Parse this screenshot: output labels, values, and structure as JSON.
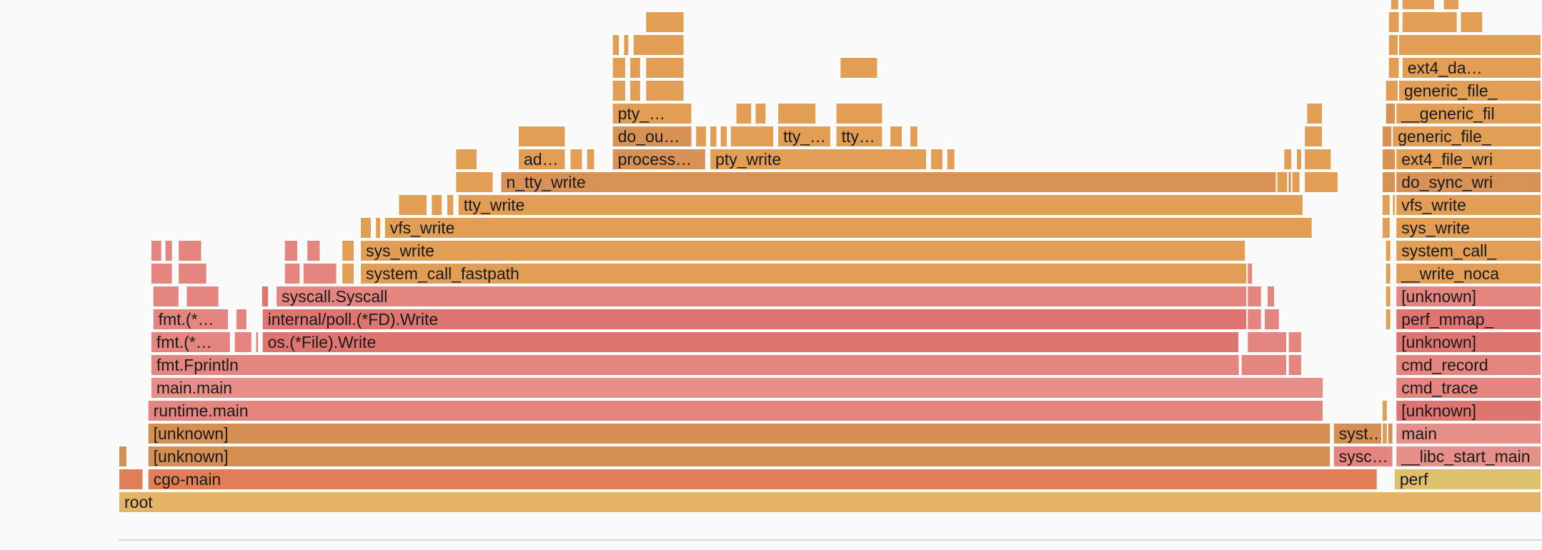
{
  "chart_data": {
    "type": "flamegraph",
    "title": "",
    "colors": {
      "root": "#e3b368",
      "go_dark": "#e07f56",
      "go_mid": "#d68f52",
      "red_light": "#e79089",
      "red": "#e58580",
      "red_dark": "#df7571",
      "kernel": "#e39e55",
      "kernel_dark": "#d89255",
      "perf": "#dcc06c"
    },
    "frames": [
      {
        "name": "root",
        "depth": 0,
        "start": 0,
        "width": 1,
        "color": "root"
      },
      {
        "name": "cgo-main",
        "depth": 1,
        "start": 0.0204,
        "width": 0.8645,
        "color": "go_dark"
      },
      {
        "name": "",
        "depth": 1,
        "start": 0,
        "width": 0.0178,
        "color": "go_dark"
      },
      {
        "name": "perf",
        "depth": 1,
        "start": 0.896,
        "width": 0.104,
        "color": "perf"
      },
      {
        "name": "",
        "depth": 2,
        "start": 0,
        "width": 0.0065,
        "color": "go_mid"
      },
      {
        "name": "[unknown]",
        "depth": 2,
        "start": 0.0204,
        "width": 0.8316,
        "color": "go_mid"
      },
      {
        "name": "sysc…",
        "depth": 2,
        "start": 0.8533,
        "width": 0.0426,
        "color": "red"
      },
      {
        "name": "__libc_start_main",
        "depth": 2,
        "start": 0.8972,
        "width": 0.1028,
        "color": "red_light"
      },
      {
        "name": "[unknown]",
        "depth": 3,
        "start": 0.0204,
        "width": 0.8316,
        "color": "go_mid"
      },
      {
        "name": "syst…",
        "depth": 3,
        "start": 0.8533,
        "width": 0.0426,
        "color": "go_mid"
      },
      {
        "name": "",
        "depth": 3,
        "start": 0.8875,
        "width": 0.0045,
        "color": "kernel"
      },
      {
        "name": "main",
        "depth": 3,
        "start": 0.8972,
        "width": 0.1028,
        "color": "red_light"
      },
      {
        "name": "runtime.main",
        "depth": 4,
        "start": 0.0204,
        "width": 0.8265,
        "color": "red"
      },
      {
        "name": "",
        "depth": 4,
        "start": 0.8875,
        "width": 0.0045,
        "color": "kernel"
      },
      {
        "name": "[unknown]",
        "depth": 4,
        "start": 0.8972,
        "width": 0.1028,
        "color": "red_dark"
      },
      {
        "name": "main.main",
        "depth": 5,
        "start": 0.0225,
        "width": 0.8245,
        "color": "red_light"
      },
      {
        "name": "cmd_trace",
        "depth": 5,
        "start": 0.8972,
        "width": 0.1028,
        "color": "red"
      },
      {
        "name": "fmt.Fprintln",
        "depth": 6,
        "start": 0.0225,
        "width": 0.7655,
        "color": "red"
      },
      {
        "name": "",
        "depth": 6,
        "start": 0.7885,
        "width": 0.0328,
        "color": "red"
      },
      {
        "name": "",
        "depth": 6,
        "start": 0.8216,
        "width": 0.0102,
        "color": "red"
      },
      {
        "name": "cmd_record",
        "depth": 6,
        "start": 0.8972,
        "width": 0.1028,
        "color": "red"
      },
      {
        "name": "fmt.(*…",
        "depth": 7,
        "start": 0.0225,
        "width": 0.0567,
        "color": "red"
      },
      {
        "name": "",
        "depth": 7,
        "start": 0.0811,
        "width": 0.0132,
        "color": "red"
      },
      {
        "name": "",
        "depth": 7,
        "start": 0.0961,
        "width": 0.0028,
        "color": "red"
      },
      {
        "name": "os.(*File).Write",
        "depth": 7,
        "start": 0.1007,
        "width": 0.687,
        "color": "red_dark"
      },
      {
        "name": "",
        "depth": 7,
        "start": 0.7928,
        "width": 0.0285,
        "color": "red"
      },
      {
        "name": "",
        "depth": 7,
        "start": 0.8216,
        "width": 0.0102,
        "color": "red"
      },
      {
        "name": "[unknown]",
        "depth": 7,
        "start": 0.8972,
        "width": 0.1028,
        "color": "red_dark"
      },
      {
        "name": "fmt.(*…",
        "depth": 8,
        "start": 0.0239,
        "width": 0.0539,
        "color": "red"
      },
      {
        "name": "",
        "depth": 8,
        "start": 0.0823,
        "width": 0.0085,
        "color": "red"
      },
      {
        "name": "internal/poll.(*FD).Write",
        "depth": 8,
        "start": 0.1007,
        "width": 0.7015,
        "color": "red_dark"
      },
      {
        "name": "",
        "depth": 8,
        "start": 0.7928,
        "width": 0.0108,
        "color": "red"
      },
      {
        "name": "",
        "depth": 8,
        "start": 0.8047,
        "width": 0.0115,
        "color": "red"
      },
      {
        "name": "",
        "depth": 8,
        "start": 0.8899,
        "width": 0.0045,
        "color": "kernel"
      },
      {
        "name": "perf_mmap_",
        "depth": 8,
        "start": 0.8972,
        "width": 0.1028,
        "color": "red_dark"
      },
      {
        "name": "",
        "depth": 9,
        "start": 0.0239,
        "width": 0.0192,
        "color": "red"
      },
      {
        "name": "",
        "depth": 9,
        "start": 0.0474,
        "width": 0.0237,
        "color": "red"
      },
      {
        "name": "",
        "depth": 9,
        "start": 0.1003,
        "width": 0.0057,
        "color": "red_dark"
      },
      {
        "name": "syscall.Syscall",
        "depth": 9,
        "start": 0.1105,
        "width": 0.6866,
        "color": "red"
      },
      {
        "name": "",
        "depth": 9,
        "start": 0.7928,
        "width": 0.0108,
        "color": "red"
      },
      {
        "name": "",
        "depth": 9,
        "start": 0.8067,
        "width": 0.0061,
        "color": "red"
      },
      {
        "name": "",
        "depth": 9,
        "start": 0.8899,
        "width": 0.0045,
        "color": "kernel"
      },
      {
        "name": "[unknown]",
        "depth": 9,
        "start": 0.8972,
        "width": 0.1028,
        "color": "red"
      },
      {
        "name": "",
        "depth": 10,
        "start": 0.0225,
        "width": 0.0159,
        "color": "red"
      },
      {
        "name": "",
        "depth": 10,
        "start": 0.0417,
        "width": 0.0209,
        "color": "red"
      },
      {
        "name": "",
        "depth": 10,
        "start": 0.1163,
        "width": 0.0119,
        "color": "red"
      },
      {
        "name": "",
        "depth": 10,
        "start": 0.1294,
        "width": 0.0245,
        "color": "red"
      },
      {
        "name": "",
        "depth": 10,
        "start": 0.1567,
        "width": 0.0095,
        "color": "kernel"
      },
      {
        "name": "system_call_fastpath",
        "depth": 10,
        "start": 0.1697,
        "width": 0.6241,
        "color": "kernel"
      },
      {
        "name": "",
        "depth": 10,
        "start": 0.7928,
        "width": 0.0045,
        "color": "red"
      },
      {
        "name": "",
        "depth": 10,
        "start": 0.8899,
        "width": 0.0045,
        "color": "kernel"
      },
      {
        "name": "__write_noca",
        "depth": 10,
        "start": 0.8972,
        "width": 0.1028,
        "color": "kernel"
      },
      {
        "name": "",
        "depth": 11,
        "start": 0.0225,
        "width": 0.0085,
        "color": "red"
      },
      {
        "name": "",
        "depth": 11,
        "start": 0.0324,
        "width": 0.0061,
        "color": "red"
      },
      {
        "name": "",
        "depth": 11,
        "start": 0.0417,
        "width": 0.0173,
        "color": "red"
      },
      {
        "name": "",
        "depth": 11,
        "start": 0.1163,
        "width": 0.0102,
        "color": "red"
      },
      {
        "name": "",
        "depth": 11,
        "start": 0.1321,
        "width": 0.0102,
        "color": "red"
      },
      {
        "name": "",
        "depth": 11,
        "start": 0.1567,
        "width": 0.0095,
        "color": "kernel"
      },
      {
        "name": "sys_write",
        "depth": 11,
        "start": 0.1697,
        "width": 0.6226,
        "color": "kernel"
      },
      {
        "name": "",
        "depth": 11,
        "start": 0.8899,
        "width": 0.0045,
        "color": "kernel"
      },
      {
        "name": "system_call_",
        "depth": 11,
        "start": 0.8972,
        "width": 0.1028,
        "color": "kernel"
      },
      {
        "name": "",
        "depth": 12,
        "start": 0.1697,
        "width": 0.0085,
        "color": "kernel"
      },
      {
        "name": "",
        "depth": 12,
        "start": 0.1803,
        "width": 0.0045,
        "color": "kernel"
      },
      {
        "name": "vfs_write",
        "depth": 12,
        "start": 0.1866,
        "width": 0.6526,
        "color": "kernel"
      },
      {
        "name": "",
        "depth": 12,
        "start": 0.8875,
        "width": 0.0065,
        "color": "kernel"
      },
      {
        "name": "sys_write",
        "depth": 12,
        "start": 0.8972,
        "width": 0.1028,
        "color": "kernel"
      },
      {
        "name": "",
        "depth": 13,
        "start": 0.1965,
        "width": 0.0209,
        "color": "kernel"
      },
      {
        "name": "",
        "depth": 13,
        "start": 0.2195,
        "width": 0.0085,
        "color": "kernel"
      },
      {
        "name": "",
        "depth": 13,
        "start": 0.2304,
        "width": 0.0057,
        "color": "kernel"
      },
      {
        "name": "tty_write",
        "depth": 13,
        "start": 0.2383,
        "width": 0.5945,
        "color": "kernel"
      },
      {
        "name": "",
        "depth": 13,
        "start": 0.8875,
        "width": 0.0065,
        "color": "kernel"
      },
      {
        "name": "",
        "depth": 13,
        "start": 0.8948,
        "width": 0.0045,
        "color": "kernel"
      },
      {
        "name": "vfs_write",
        "depth": 13,
        "start": 0.8972,
        "width": 0.1028,
        "color": "kernel"
      },
      {
        "name": "",
        "depth": 14,
        "start": 0.2366,
        "width": 0.0272,
        "color": "kernel"
      },
      {
        "name": "n_tty_write",
        "depth": 14,
        "start": 0.2683,
        "width": 0.5633,
        "color": "kernel_dark"
      },
      {
        "name": "",
        "depth": 14,
        "start": 0.8135,
        "width": 0.0085,
        "color": "kernel"
      },
      {
        "name": "",
        "depth": 14,
        "start": 0.8241,
        "width": 0.0065,
        "color": "kernel"
      },
      {
        "name": "",
        "depth": 14,
        "start": 0.8329,
        "width": 0.0245,
        "color": "kernel"
      },
      {
        "name": "",
        "depth": 14,
        "start": 0.8875,
        "width": 0.0151,
        "color": "kernel_dark"
      },
      {
        "name": "do_sync_wri",
        "depth": 14,
        "start": 0.8972,
        "width": 0.1028,
        "color": "kernel_dark"
      },
      {
        "name": "",
        "depth": 15,
        "start": 0.2366,
        "width": 0.0159,
        "color": "kernel"
      },
      {
        "name": "ad…",
        "depth": 15,
        "start": 0.2806,
        "width": 0.0339,
        "color": "kernel"
      },
      {
        "name": "",
        "depth": 15,
        "start": 0.317,
        "width": 0.0095,
        "color": "kernel"
      },
      {
        "name": "",
        "depth": 15,
        "start": 0.3286,
        "width": 0.0065,
        "color": "kernel"
      },
      {
        "name": "process…",
        "depth": 15,
        "start": 0.3467,
        "width": 0.0664,
        "color": "kernel_dark"
      },
      {
        "name": "pty_write",
        "depth": 15,
        "start": 0.4152,
        "width": 0.1531,
        "color": "kernel"
      },
      {
        "name": "",
        "depth": 15,
        "start": 0.5703,
        "width": 0.0095,
        "color": "kernel"
      },
      {
        "name": "",
        "depth": 15,
        "start": 0.5817,
        "width": 0.0065,
        "color": "kernel"
      },
      {
        "name": "",
        "depth": 15,
        "start": 0.8184,
        "width": 0.0065,
        "color": "kernel"
      },
      {
        "name": "",
        "depth": 15,
        "start": 0.8273,
        "width": 0.0045,
        "color": "kernel"
      },
      {
        "name": "",
        "depth": 15,
        "start": 0.8329,
        "width": 0.0197,
        "color": "kernel"
      },
      {
        "name": "",
        "depth": 15,
        "start": 0.8875,
        "width": 0.0151,
        "color": "kernel_dark"
      },
      {
        "name": "ext4_file_wri",
        "depth": 15,
        "start": 0.8972,
        "width": 0.1028,
        "color": "kernel"
      },
      {
        "name": "",
        "depth": 16,
        "start": 0.2806,
        "width": 0.0339,
        "color": "kernel"
      },
      {
        "name": "do_ou…",
        "depth": 16,
        "start": 0.3467,
        "width": 0.0567,
        "color": "kernel_dark"
      },
      {
        "name": "",
        "depth": 16,
        "start": 0.4052,
        "width": 0.0085,
        "color": "kernel"
      },
      {
        "name": "",
        "depth": 16,
        "start": 0.4152,
        "width": 0.0058,
        "color": "kernel"
      },
      {
        "name": "",
        "depth": 16,
        "start": 0.4225,
        "width": 0.0058,
        "color": "kernel"
      },
      {
        "name": "",
        "depth": 16,
        "start": 0.4296,
        "width": 0.0313,
        "color": "kernel"
      },
      {
        "name": "tty_…",
        "depth": 16,
        "start": 0.4629,
        "width": 0.0381,
        "color": "kernel"
      },
      {
        "name": "tty…",
        "depth": 16,
        "start": 0.5038,
        "width": 0.0336,
        "color": "kernel"
      },
      {
        "name": "",
        "depth": 16,
        "start": 0.5417,
        "width": 0.0095,
        "color": "kernel"
      },
      {
        "name": "",
        "depth": 16,
        "start": 0.5557,
        "width": 0.0065,
        "color": "kernel"
      },
      {
        "name": "",
        "depth": 16,
        "start": 0.8329,
        "width": 0.0135,
        "color": "kernel"
      },
      {
        "name": "",
        "depth": 16,
        "start": 0.8875,
        "width": 0.0151,
        "color": "kernel_dark"
      },
      {
        "name": "generic_file_",
        "depth": 16,
        "start": 0.8947,
        "width": 0.1053,
        "color": "kernel"
      },
      {
        "name": "pty_…",
        "depth": 17,
        "start": 0.3467,
        "width": 0.0567,
        "color": "kernel"
      },
      {
        "name": "",
        "depth": 17,
        "start": 0.4335,
        "width": 0.0119,
        "color": "kernel"
      },
      {
        "name": "",
        "depth": 17,
        "start": 0.447,
        "width": 0.0085,
        "color": "kernel"
      },
      {
        "name": "",
        "depth": 17,
        "start": 0.4629,
        "width": 0.0277,
        "color": "kernel"
      },
      {
        "name": "",
        "depth": 17,
        "start": 0.5038,
        "width": 0.0336,
        "color": "kernel"
      },
      {
        "name": "",
        "depth": 17,
        "start": 0.8345,
        "width": 0.0119,
        "color": "kernel"
      },
      {
        "name": "",
        "depth": 17,
        "start": 0.8899,
        "width": 0.0119,
        "color": "kernel_dark"
      },
      {
        "name": "__generic_fil",
        "depth": 17,
        "start": 0.8972,
        "width": 0.1028,
        "color": "kernel"
      },
      {
        "name": "",
        "depth": 18,
        "start": 0.3467,
        "width": 0.0102,
        "color": "kernel"
      },
      {
        "name": "",
        "depth": 18,
        "start": 0.3589,
        "width": 0.0085,
        "color": "kernel"
      },
      {
        "name": "",
        "depth": 18,
        "start": 0.3701,
        "width": 0.0278,
        "color": "kernel"
      },
      {
        "name": "",
        "depth": 18,
        "start": 0.8899,
        "width": 0.0102,
        "color": "kernel"
      },
      {
        "name": "generic_file_",
        "depth": 18,
        "start": 0.8991,
        "width": 0.1009,
        "color": "kernel"
      },
      {
        "name": "",
        "depth": 19,
        "start": 0.3467,
        "width": 0.0102,
        "color": "kernel"
      },
      {
        "name": "",
        "depth": 19,
        "start": 0.3589,
        "width": 0.0085,
        "color": "kernel"
      },
      {
        "name": "",
        "depth": 19,
        "start": 0.3701,
        "width": 0.0278,
        "color": "kernel"
      },
      {
        "name": "",
        "depth": 19,
        "start": 0.5067,
        "width": 0.0272,
        "color": "kernel"
      },
      {
        "name": "",
        "depth": 19,
        "start": 0.8919,
        "width": 0.0085,
        "color": "kernel"
      },
      {
        "name": "ext4_da…",
        "depth": 19,
        "start": 0.9015,
        "width": 0.0985,
        "color": "kernel"
      },
      {
        "name": "",
        "depth": 20,
        "start": 0.3467,
        "width": 0.0058,
        "color": "kernel"
      },
      {
        "name": "",
        "depth": 20,
        "start": 0.3546,
        "width": 0.0045,
        "color": "kernel"
      },
      {
        "name": "",
        "depth": 20,
        "start": 0.3613,
        "width": 0.0366,
        "color": "kernel"
      },
      {
        "name": "",
        "depth": 20,
        "start": 0.8919,
        "width": 0.0085,
        "color": "kernel"
      },
      {
        "name": "",
        "depth": 20,
        "start": 0.8991,
        "width": 0.1009,
        "color": "kernel"
      },
      {
        "name": "",
        "depth": 21,
        "start": 0.3701,
        "width": 0.0278,
        "color": "kernel"
      },
      {
        "name": "",
        "depth": 21,
        "start": 0.8919,
        "width": 0.0085,
        "color": "kernel"
      },
      {
        "name": "",
        "depth": 21,
        "start": 0.9015,
        "width": 0.0396,
        "color": "kernel"
      },
      {
        "name": "",
        "depth": 21,
        "start": 0.9425,
        "width": 0.0165,
        "color": "kernel"
      },
      {
        "name": "",
        "depth": 22,
        "start": 0.8935,
        "width": 0.0065,
        "color": "kernel"
      },
      {
        "name": "",
        "depth": 22,
        "start": 0.9015,
        "width": 0.0237,
        "color": "kernel"
      },
      {
        "name": "",
        "depth": 22,
        "start": 0.9305,
        "width": 0.0119,
        "color": "kernel"
      }
    ]
  }
}
